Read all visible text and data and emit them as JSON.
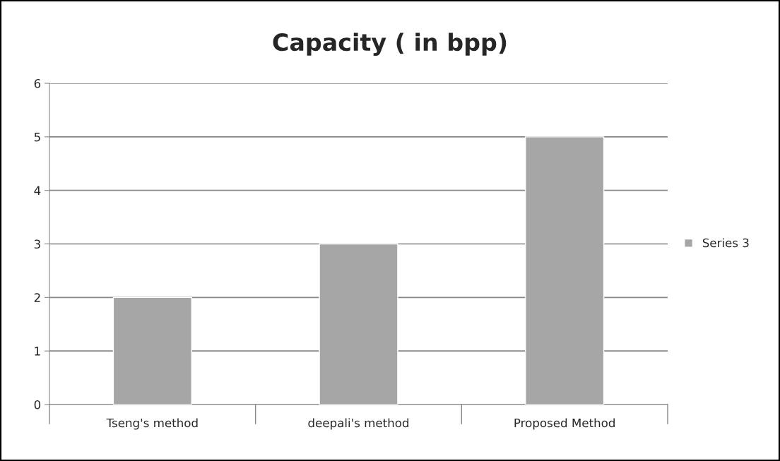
{
  "chart_data": {
    "type": "bar",
    "title": "Capacity ( in bpp)",
    "categories": [
      "Tseng's method",
      "deepali's method",
      "Proposed Method"
    ],
    "series": [
      {
        "name": "Series 3",
        "color": "#a6a6a6",
        "values": [
          2,
          3,
          5
        ]
      }
    ],
    "ylim": [
      0,
      6
    ],
    "yticks": [
      0,
      1,
      2,
      3,
      4,
      5,
      6
    ],
    "grid": "y",
    "legend": "right"
  }
}
